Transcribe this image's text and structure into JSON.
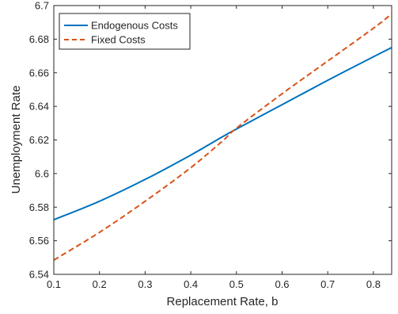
{
  "chart_data": {
    "type": "line",
    "xlabel": "Replacement Rate, b",
    "ylabel": "Unemployment Rate",
    "xlim": [
      0.1,
      0.84
    ],
    "ylim": [
      6.54,
      6.7
    ],
    "xticks": [
      0.1,
      0.2,
      0.3,
      0.4,
      0.5,
      0.6,
      0.7,
      0.8
    ],
    "xtick_labels": [
      "0.1",
      "0.2",
      "0.3",
      "0.4",
      "0.5",
      "0.6",
      "0.7",
      "0.8"
    ],
    "yticks": [
      6.54,
      6.56,
      6.58,
      6.6,
      6.62,
      6.64,
      6.66,
      6.68,
      6.7
    ],
    "ytick_labels": [
      "6.54",
      "6.56",
      "6.58",
      "6.6",
      "6.62",
      "6.64",
      "6.66",
      "6.68",
      "6.7"
    ],
    "grid": false,
    "legend_position": "top-left",
    "series": [
      {
        "name": "Endogenous Costs",
        "color": "#0072BD",
        "style": "solid",
        "x": [
          0.1,
          0.2,
          0.3,
          0.4,
          0.47,
          0.5,
          0.6,
          0.7,
          0.8,
          0.84
        ],
        "y": [
          6.5725,
          6.5835,
          6.5965,
          6.611,
          6.622,
          6.6265,
          6.641,
          6.6555,
          6.6695,
          6.675
        ]
      },
      {
        "name": "Fixed Costs",
        "color": "#D95319",
        "style": "dashed",
        "x": [
          0.1,
          0.2,
          0.3,
          0.4,
          0.47,
          0.5,
          0.6,
          0.7,
          0.8,
          0.84
        ],
        "y": [
          6.5485,
          6.565,
          6.5835,
          6.6035,
          6.6195,
          6.627,
          6.6475,
          6.667,
          6.6865,
          6.695
        ]
      }
    ]
  }
}
